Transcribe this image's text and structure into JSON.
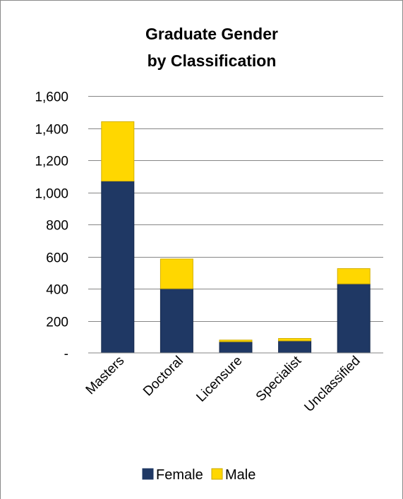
{
  "chart_data": {
    "type": "bar",
    "stacked": true,
    "title": "Graduate Gender by Classification",
    "title_lines": [
      "Graduate Gender",
      "by Classification"
    ],
    "categories": [
      "Masters",
      "Doctoral",
      "Licensure",
      "Specialist",
      "Unclassified"
    ],
    "series": [
      {
        "name": "Female",
        "color": "#1f3864",
        "values": [
          1070,
          400,
          70,
          75,
          430
        ]
      },
      {
        "name": "Male",
        "color": "#ffd700",
        "values": [
          370,
          185,
          10,
          15,
          95
        ]
      }
    ],
    "ylim": [
      0,
      1600
    ],
    "yticks": [
      0,
      200,
      400,
      600,
      800,
      1000,
      1200,
      1400,
      1600
    ],
    "ytick_labels": [
      "-",
      "200",
      "400",
      "600",
      "800",
      "1,000",
      "1,200",
      "1,400",
      "1,600"
    ],
    "grid": true,
    "legend": "bottom",
    "legend_entries": [
      "Female",
      "Male"
    ]
  }
}
